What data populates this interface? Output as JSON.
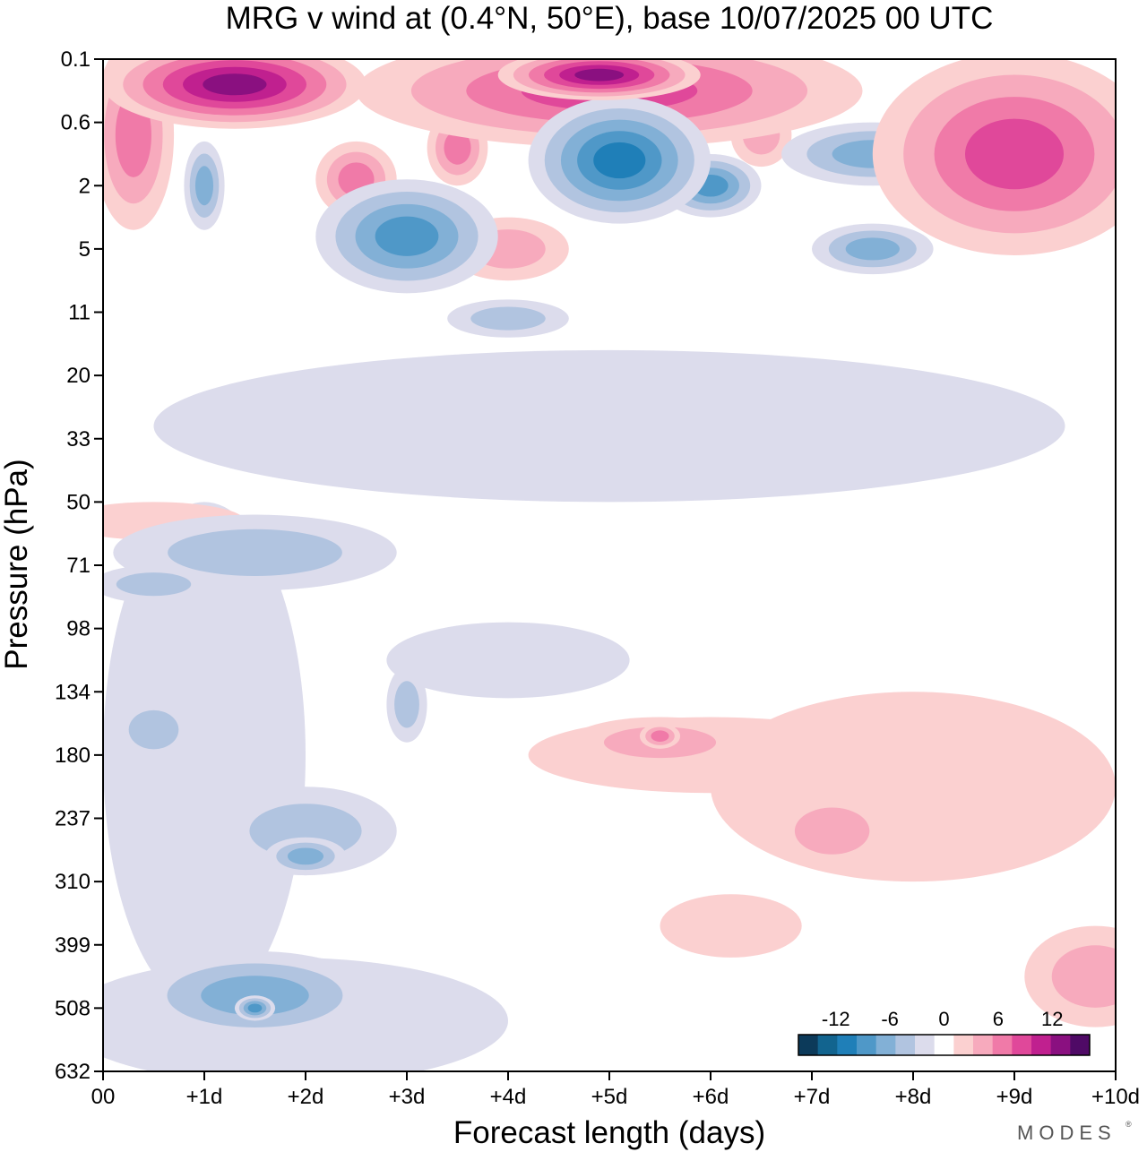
{
  "chart_data": {
    "type": "heatmap",
    "title": "MRG v wind at (0.4°N, 50°E),  base 10/07/2025  00 UTC",
    "xlabel": "Forecast length (days)",
    "ylabel": "Pressure (hPa)",
    "x_ticks": [
      "00",
      "+1d",
      "+2d",
      "+3d",
      "+4d",
      "+5d",
      "+6d",
      "+7d",
      "+8d",
      "+9d",
      "+10d"
    ],
    "x_range_days": [
      0,
      10
    ],
    "y_ticks": [
      "0.1",
      "0.6",
      "2",
      "5",
      "11",
      "20",
      "33",
      "50",
      "71",
      "98",
      "134",
      "180",
      "237",
      "310",
      "399",
      "508",
      "632"
    ],
    "y_scale": "log-pressure (inverted, top = 0.1 hPa, bottom = 632 hPa)",
    "colorbar": {
      "labels": [
        "-12",
        "-6",
        "0",
        "6",
        "12"
      ],
      "label_values": [
        -12,
        -6,
        0,
        6,
        12
      ],
      "levels": [
        -14,
        -12,
        -10,
        -8,
        -6,
        -4,
        -2,
        2,
        4,
        6,
        8,
        10,
        12,
        14
      ],
      "colors": [
        "#0c3a5a",
        "#12648f",
        "#1f7fb8",
        "#4f98c8",
        "#82b0d6",
        "#b1c4e0",
        "#dcdcec",
        "#ffffff",
        "#fbd0d0",
        "#f7aabd",
        "#f07aa8",
        "#e0489a",
        "#c0208f",
        "#8a1080",
        "#4f0a66"
      ],
      "placement": "bottom-right inside plot"
    },
    "features": [
      {
        "var": "v",
        "level": 4,
        "cx": 5.0,
        "cy": 0.5,
        "rx": 2.5,
        "ry": 0.9
      },
      {
        "var": "v",
        "level": 6,
        "cx": 1.3,
        "cy": 0.4,
        "rx": 1.3,
        "ry": 0.7
      },
      {
        "var": "v",
        "level": 6,
        "cx": 4.9,
        "cy": 0.25,
        "rx": 1.0,
        "ry": 0.4
      },
      {
        "var": "v",
        "level": 4,
        "cx": 9.0,
        "cy": 1.5,
        "rx": 1.4,
        "ry": 1.6
      },
      {
        "var": "v",
        "level": 3,
        "cx": 0.3,
        "cy": 1.2,
        "rx": 0.4,
        "ry": 1.5
      },
      {
        "var": "v",
        "level": 3,
        "cx": 2.5,
        "cy": 1.9,
        "rx": 0.4,
        "ry": 0.6
      },
      {
        "var": "v",
        "level": 3,
        "cx": 3.5,
        "cy": 1.4,
        "rx": 0.3,
        "ry": 0.6
      },
      {
        "var": "v",
        "level": 2,
        "cx": 6.5,
        "cy": 1.2,
        "rx": 0.3,
        "ry": 0.5
      },
      {
        "var": "v",
        "level": 2,
        "cx": 4.0,
        "cy": 3.0,
        "rx": 0.6,
        "ry": 0.5
      },
      {
        "var": "v",
        "level": -3,
        "cx": 1.0,
        "cy": 2.0,
        "rx": 0.2,
        "ry": 0.7
      },
      {
        "var": "v",
        "level": -4,
        "cx": 3.0,
        "cy": 2.8,
        "rx": 0.9,
        "ry": 0.9
      },
      {
        "var": "v",
        "level": -5,
        "cx": 5.1,
        "cy": 1.6,
        "rx": 0.9,
        "ry": 1.0
      },
      {
        "var": "v",
        "level": -4,
        "cx": 6.0,
        "cy": 2.0,
        "rx": 0.5,
        "ry": 0.5
      },
      {
        "var": "v",
        "level": -3,
        "cx": 7.6,
        "cy": 1.5,
        "rx": 0.9,
        "ry": 0.5
      },
      {
        "var": "v",
        "level": -3,
        "cx": 7.6,
        "cy": 3.0,
        "rx": 0.6,
        "ry": 0.4
      },
      {
        "var": "v",
        "level": -2,
        "cx": 4.0,
        "cy": 4.1,
        "rx": 0.6,
        "ry": 0.3
      },
      {
        "var": "v",
        "level": -2,
        "cx": 1.5,
        "cy": 7.8,
        "rx": 1.4,
        "ry": 0.6
      },
      {
        "var": "v",
        "level": -2,
        "cx": 0.5,
        "cy": 8.3,
        "rx": 0.6,
        "ry": 0.3
      },
      {
        "var": "v",
        "level": -1,
        "cx": 1.0,
        "cy": 11.0,
        "rx": 1.0,
        "ry": 4.0
      },
      {
        "var": "v",
        "level": -1,
        "cx": 4.0,
        "cy": 9.5,
        "rx": 1.2,
        "ry": 0.6
      },
      {
        "var": "v",
        "level": -2,
        "cx": 2.0,
        "cy": 12.2,
        "rx": 0.9,
        "ry": 0.7
      },
      {
        "var": "v",
        "level": -3,
        "cx": 2.0,
        "cy": 12.6,
        "rx": 0.4,
        "ry": 0.3
      },
      {
        "var": "v",
        "level": -2,
        "cx": 0.5,
        "cy": 10.6,
        "rx": 0.4,
        "ry": 0.5
      },
      {
        "var": "v",
        "level": -2,
        "cx": 3.0,
        "cy": 10.2,
        "rx": 0.2,
        "ry": 0.6
      },
      {
        "var": "v",
        "level": -3,
        "cx": 1.5,
        "cy": 14.8,
        "rx": 1.2,
        "ry": 0.7
      },
      {
        "var": "v",
        "level": -4,
        "cx": 1.5,
        "cy": 15.0,
        "rx": 0.2,
        "ry": 0.2
      },
      {
        "var": "v",
        "level": -1,
        "cx": 1.8,
        "cy": 15.2,
        "rx": 2.2,
        "ry": 1.0
      },
      {
        "var": "v",
        "level": 1,
        "cx": 6.0,
        "cy": 11.0,
        "rx": 1.8,
        "ry": 0.6
      },
      {
        "var": "v",
        "level": 2,
        "cx": 5.5,
        "cy": 10.8,
        "rx": 0.9,
        "ry": 0.4
      },
      {
        "var": "v",
        "level": 3,
        "cx": 5.5,
        "cy": 10.7,
        "rx": 0.2,
        "ry": 0.2
      },
      {
        "var": "v",
        "level": 1,
        "cx": 8.0,
        "cy": 11.5,
        "rx": 2.0,
        "ry": 1.5
      },
      {
        "var": "v",
        "level": 2,
        "cx": 7.2,
        "cy": 12.2,
        "rx": 0.6,
        "ry": 0.6
      },
      {
        "var": "v",
        "level": 1,
        "cx": 6.2,
        "cy": 13.7,
        "rx": 0.7,
        "ry": 0.5
      },
      {
        "var": "v",
        "level": 2,
        "cx": 9.8,
        "cy": 14.5,
        "rx": 0.7,
        "ry": 0.8
      },
      {
        "var": "v",
        "level": 1,
        "cx": 0.5,
        "cy": 7.3,
        "rx": 0.9,
        "ry": 0.3
      },
      {
        "var": "v",
        "level": -1,
        "cx": 5.0,
        "cy": 5.8,
        "rx": 4.5,
        "ry": 1.2
      }
    ]
  }
}
